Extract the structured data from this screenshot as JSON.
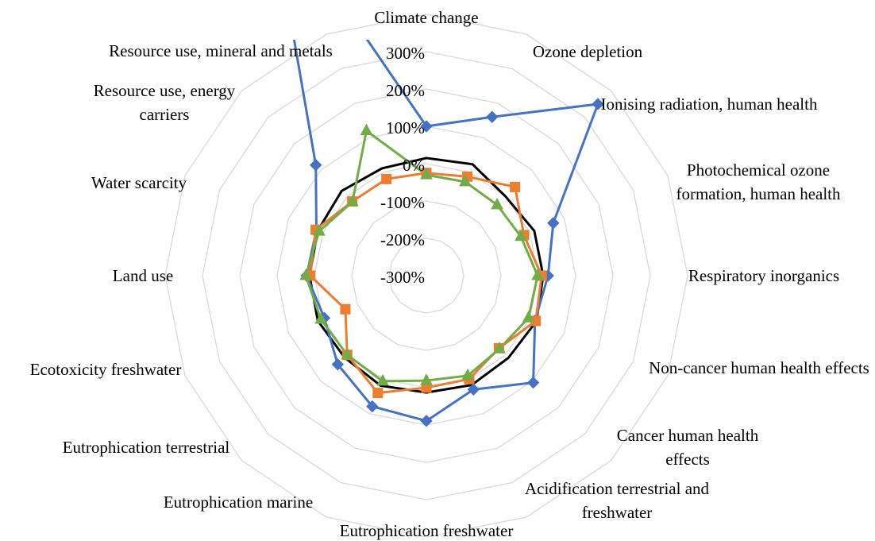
{
  "chart_data": {
    "type": "radar",
    "categories": [
      "Climate change",
      "Ozone depletion",
      "Ionising radiation, human health",
      "Photochemical ozone formation, human health",
      "Respiratory inorganics",
      "Non-cancer human health effects",
      "Cancer human health effects",
      "Acidification terrestrial and freshwater",
      "Eutrophication freshwater",
      "Eutrophication marine",
      "Eutrophication terrestrial",
      "Ecotoxicity freshwater",
      "Land use",
      "Water scarcity",
      "Resource use, energy carriers",
      "Resource use, mineral and metals"
    ],
    "series": [
      {
        "color": "#000000",
        "marker": "none",
        "values": [
          15,
          23,
          0,
          13,
          13,
          19,
          11,
          17,
          13,
          19,
          10,
          15,
          13,
          15,
          21,
          11
        ]
      },
      {
        "color": "#4472c4",
        "marker": "diamond",
        "values": [
          100,
          160,
          350,
          68,
          26,
          15,
          105,
          30,
          89,
          79,
          36,
          -4,
          21,
          19,
          119,
          800
        ]
      },
      {
        "color": "#ed7d31",
        "marker": "square",
        "values": [
          -25,
          -13,
          36,
          -17,
          9,
          17,
          -25,
          0,
          0,
          40,
          0,
          -65,
          11,
          21,
          -19,
          -20
        ]
      },
      {
        "color": "#70ad47",
        "marker": "triangle",
        "values": [
          -30,
          -28,
          -32,
          -26,
          -2,
          -4,
          -23,
          -10,
          -19,
          6,
          0,
          6,
          23,
          11,
          -20,
          120
        ]
      }
    ],
    "ylim": [
      -300,
      400
    ],
    "yticks": [
      {
        "value": -300,
        "label": "-300%"
      },
      {
        "value": -200,
        "label": "-200%"
      },
      {
        "value": -100,
        "label": "-100%"
      },
      {
        "value": 0,
        "label": "0%"
      },
      {
        "value": 100,
        "label": "100%"
      },
      {
        "value": 200,
        "label": "200%"
      },
      {
        "value": 300,
        "label": "300%"
      }
    ],
    "grid": true
  }
}
